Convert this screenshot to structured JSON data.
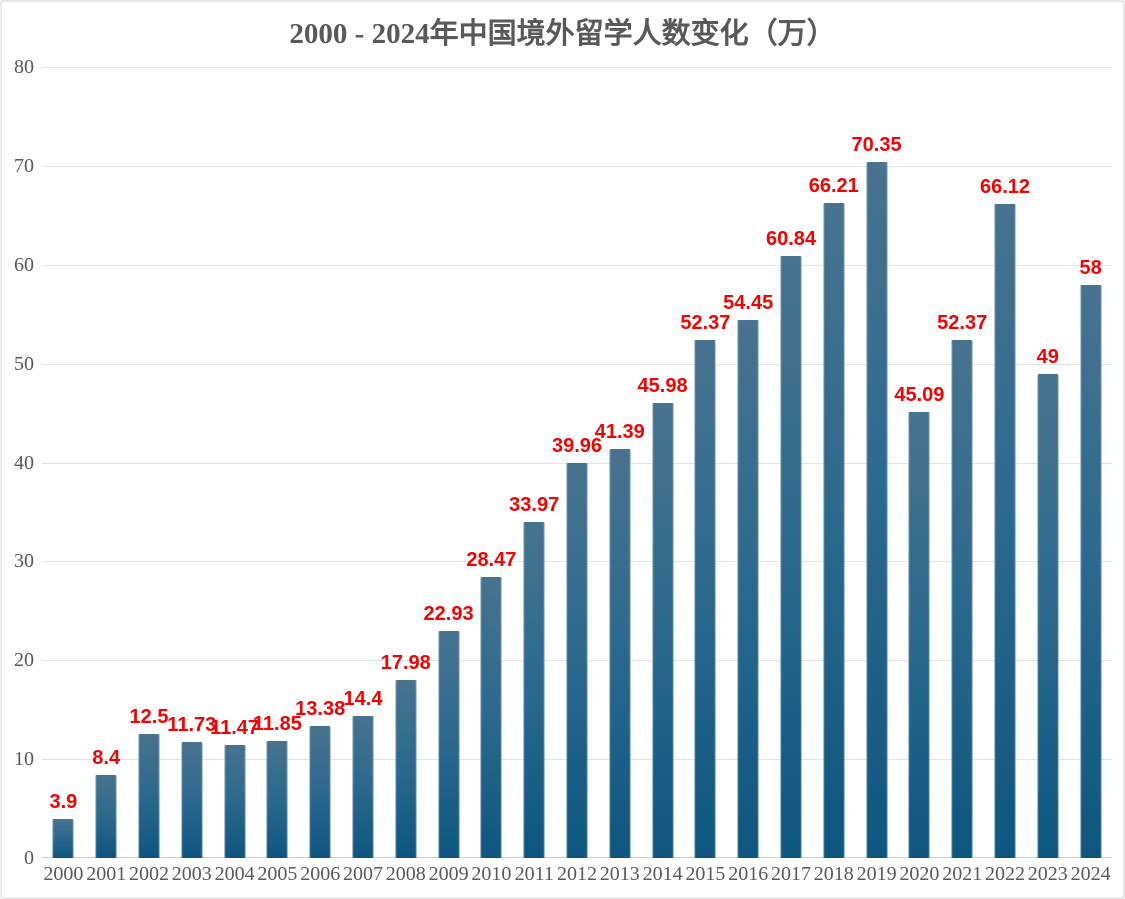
{
  "chart_data": {
    "type": "bar",
    "title": "2000 - 2024年中国境外留学人数变化（万）",
    "categories": [
      "2000",
      "2001",
      "2002",
      "2003",
      "2004",
      "2005",
      "2006",
      "2007",
      "2008",
      "2009",
      "2010",
      "2011",
      "2012",
      "2013",
      "2014",
      "2015",
      "2016",
      "2017",
      "2018",
      "2019",
      "2020",
      "2021",
      "2022",
      "2023",
      "2024"
    ],
    "values": [
      3.9,
      8.4,
      12.5,
      11.73,
      11.47,
      11.85,
      13.38,
      14.4,
      17.98,
      22.93,
      28.47,
      33.97,
      39.96,
      41.39,
      45.98,
      52.37,
      54.45,
      60.84,
      66.21,
      70.35,
      45.09,
      52.37,
      66.12,
      49,
      58
    ],
    "value_labels": [
      "3.9",
      "8.4",
      "12.5",
      "11.73",
      "11.47",
      "11.85",
      "13.38",
      "14.4",
      "17.98",
      "22.93",
      "28.47",
      "33.97",
      "39.96",
      "41.39",
      "45.98",
      "52.37",
      "54.45",
      "60.84",
      "66.21",
      "70.35",
      "45.09",
      "52.37",
      "66.12",
      "49",
      "58"
    ],
    "xlabel": "",
    "ylabel": "",
    "ylim": [
      0,
      80
    ],
    "yticks": [
      0,
      10,
      20,
      30,
      40,
      50,
      60,
      70,
      80
    ],
    "grid": true,
    "legend_position": "none",
    "colors": {
      "bar_gradient_top": "#47738f",
      "bar_gradient_mid": "#2e6a8e",
      "bar_gradient_bottom": "#0d567f",
      "data_label": "#f60000",
      "axis_text": "#595959",
      "title_text": "#595959",
      "gridline": "#e4e4e4",
      "axis_line": "#cdcdcd",
      "background": "#ffffff",
      "border": "#e8e8e8"
    }
  }
}
